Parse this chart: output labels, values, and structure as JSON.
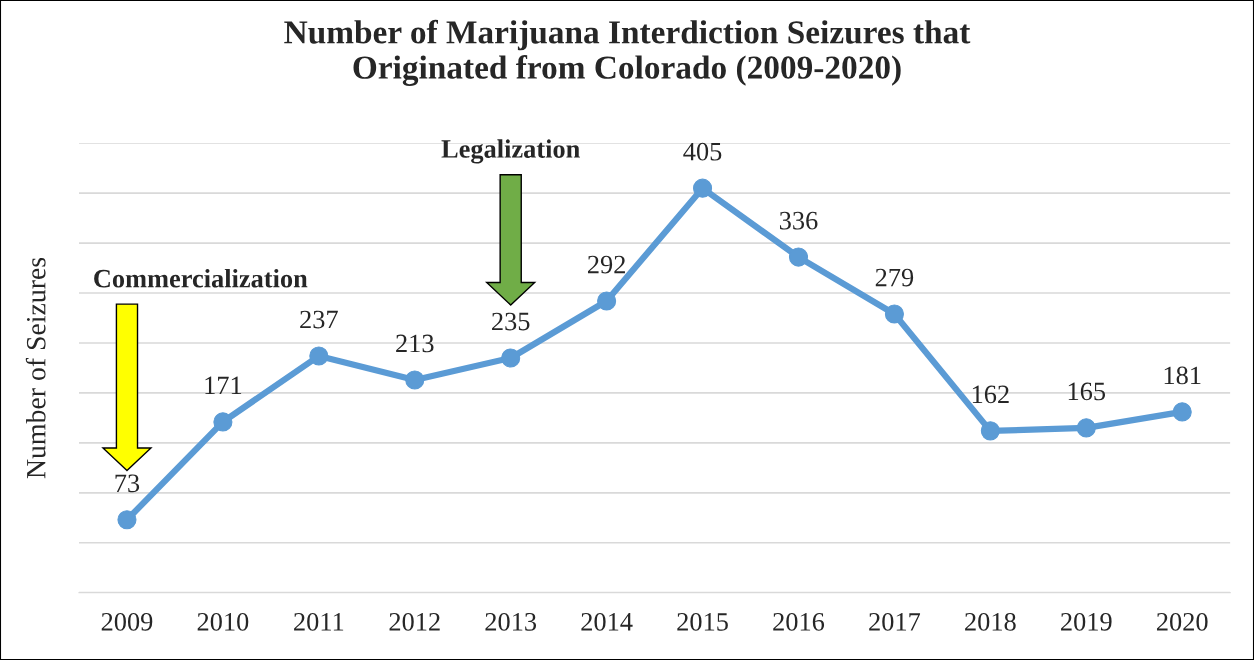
{
  "chart_data": {
    "type": "line",
    "title": "Number of Marijuana Interdiction Seizures that\nOriginated from Colorado (2009-2020)",
    "ylabel": "Number of Seizures",
    "categories": [
      "2009",
      "2010",
      "2011",
      "2012",
      "2013",
      "2014",
      "2015",
      "2016",
      "2017",
      "2018",
      "2019",
      "2020"
    ],
    "series": [
      {
        "color": "#5b9bd5",
        "values": [
          73,
          171,
          237,
          213,
          235,
          292,
          405,
          336,
          279,
          162,
          165,
          181
        ]
      }
    ],
    "ylim": [
      0,
      450
    ],
    "yticks": [
      {
        "value": 0,
        "label": null
      },
      {
        "value": 50,
        "label": null
      },
      {
        "value": 100,
        "label": null
      },
      {
        "value": 150,
        "label": null
      },
      {
        "value": 200,
        "label": null
      },
      {
        "value": 250,
        "label": null
      },
      {
        "value": 300,
        "label": null
      },
      {
        "value": 350,
        "label": null
      },
      {
        "value": 400,
        "label": null
      },
      {
        "value": 450,
        "label": null
      }
    ],
    "tick_labels": "x",
    "grid": "y",
    "marker": "circle",
    "line_style": "solid",
    "data_labels": true,
    "legend": false,
    "annotations": [
      "Commercialization",
      "Legalization"
    ]
  }
}
